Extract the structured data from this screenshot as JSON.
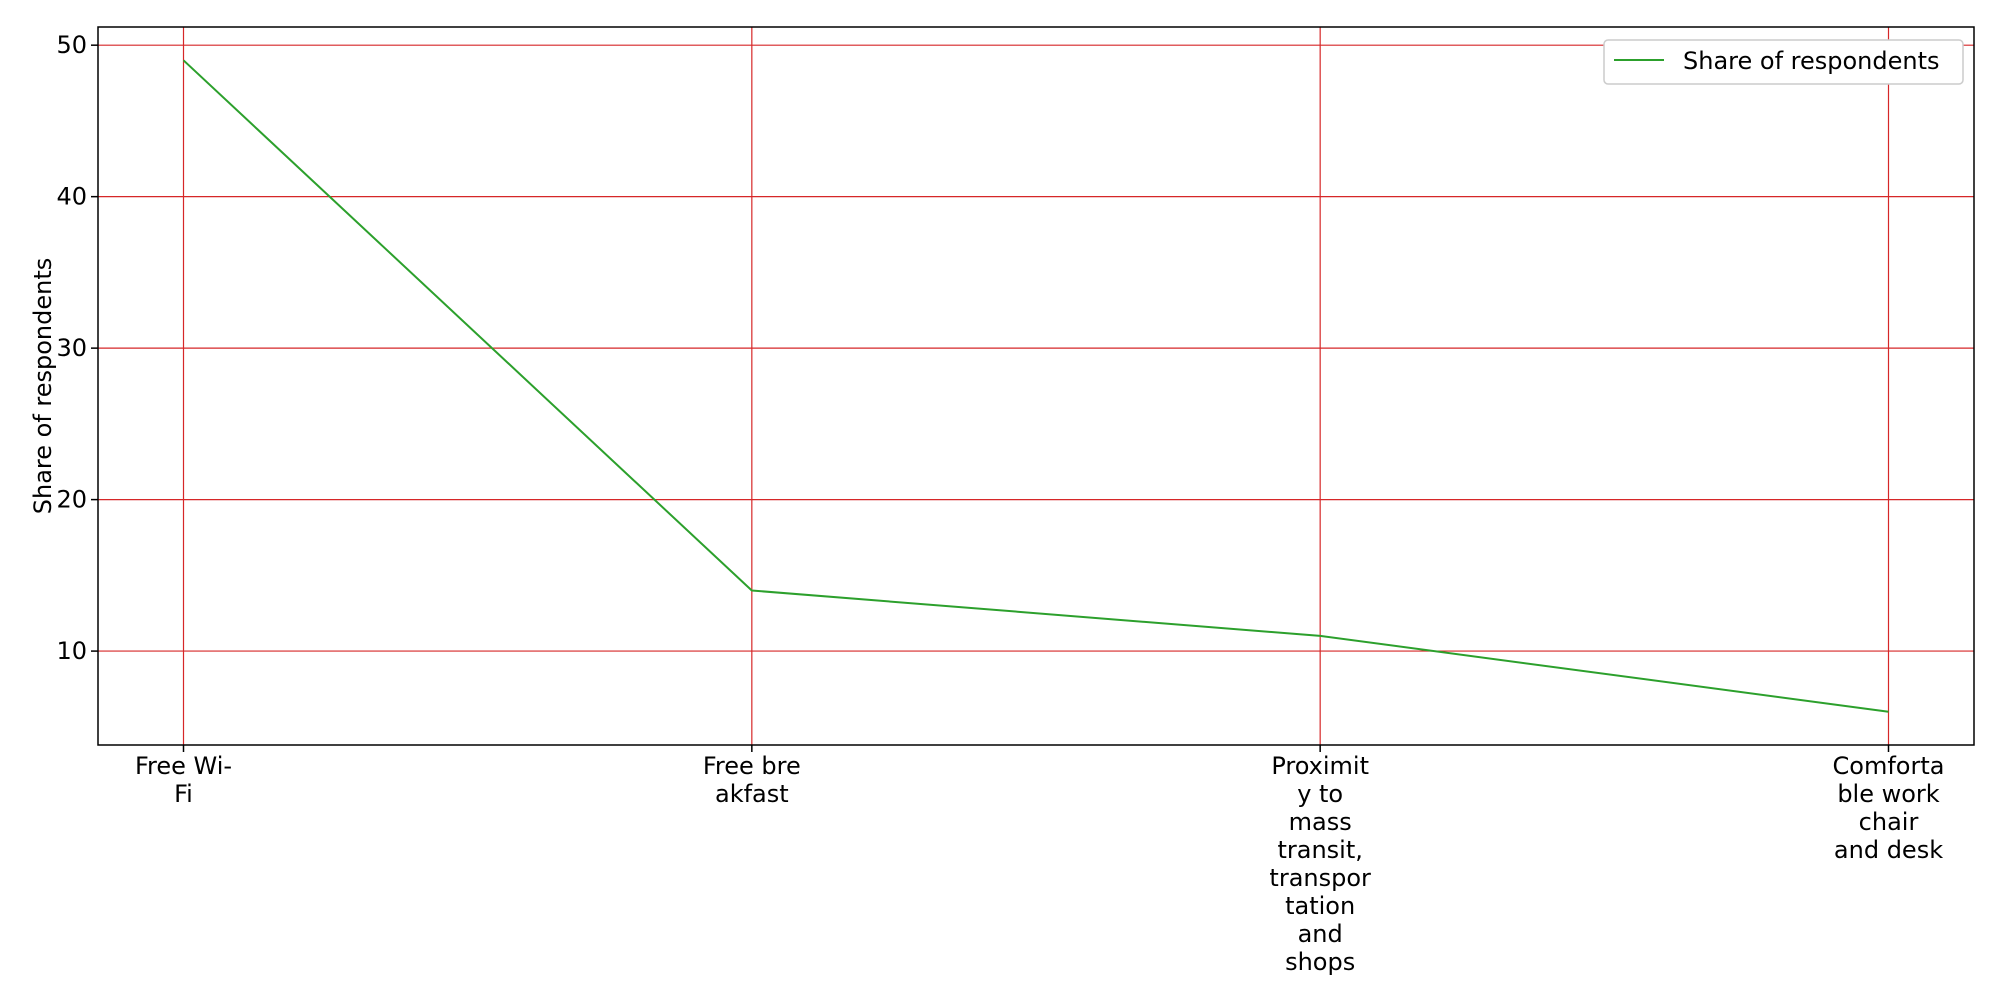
{
  "chart_data": {
    "type": "line",
    "title": "",
    "xlabel": "",
    "ylabel": "Share of respondents",
    "categories": [
      "Free Wi-Fi",
      "Free breakfast",
      "Proximity to mass transit, transportation and shops",
      "Comfortable work chair and desk"
    ],
    "category_lines": [
      [
        "Free Wi-",
        "Fi"
      ],
      [
        "Free bre",
        "akfast"
      ],
      [
        "Proximit",
        "y to",
        "mass",
        "transit,",
        "transpor",
        "tation",
        "and",
        "shops"
      ],
      [
        "Comforta",
        "ble work",
        "chair",
        "and desk"
      ]
    ],
    "series": [
      {
        "name": "Share of respondents",
        "values": [
          49,
          14,
          11,
          6
        ],
        "color": "#2ca02c"
      }
    ],
    "ylim": [
      3.8,
      51.2
    ],
    "yticks": [
      10,
      20,
      30,
      40,
      50
    ],
    "grid": true,
    "grid_color": "#d62728",
    "legend": {
      "placement": "top-right",
      "entries": [
        "Share of respondents"
      ]
    }
  }
}
